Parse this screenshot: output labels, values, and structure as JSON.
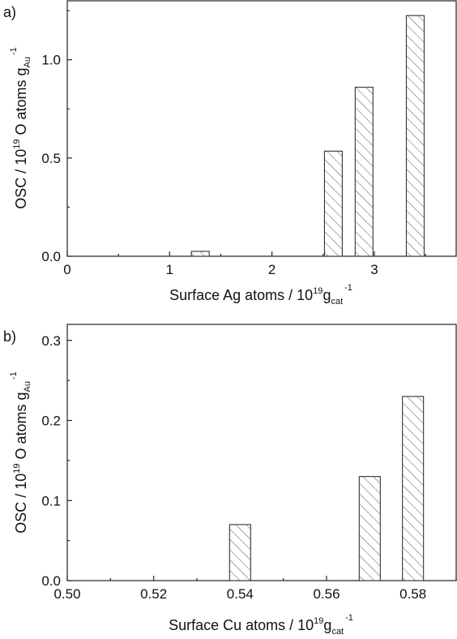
{
  "chart_data": [
    {
      "type": "bar",
      "panel_label": "a)",
      "bar_fill": "hatched",
      "x": [
        1.3,
        2.6,
        2.9,
        3.4
      ],
      "values": [
        0.025,
        0.535,
        0.86,
        1.225
      ],
      "xlim": [
        0,
        3.8
      ],
      "ylim": [
        0,
        1.3
      ],
      "xticks": [
        0,
        1,
        2,
        3
      ],
      "yticks": [
        0.0,
        0.5,
        1.0
      ],
      "xtick_labels": [
        "0",
        "1",
        "2",
        "3"
      ],
      "ytick_labels": [
        "0.0",
        "0.5",
        "1.0"
      ],
      "xlabel": {
        "text": "Surface Ag atoms / 10",
        "sup1": "19",
        "mid": "g",
        "sub": "cat",
        "sup2": "-1"
      },
      "ylabel": {
        "text": "OSC / 10",
        "sup1": "19",
        "mid": " O atoms g",
        "sub": "Au",
        "sup2": "-1"
      }
    },
    {
      "type": "bar",
      "panel_label": "b)",
      "bar_fill": "hatched",
      "x": [
        0.54,
        0.57,
        0.58
      ],
      "values": [
        0.07,
        0.13,
        0.23
      ],
      "xlim": [
        0.5,
        0.59
      ],
      "ylim": [
        0,
        0.32
      ],
      "xticks": [
        0.5,
        0.52,
        0.54,
        0.56,
        0.58
      ],
      "yticks": [
        0.0,
        0.1,
        0.2,
        0.3
      ],
      "xtick_labels": [
        "0.50",
        "0.52",
        "0.54",
        "0.56",
        "0.58"
      ],
      "ytick_labels": [
        "0.0",
        "0.1",
        "0.2",
        "0.3"
      ],
      "xlabel": {
        "text": "Surface Cu atoms / 10",
        "sup1": "19",
        "mid": "g",
        "sub": "cat",
        "sup2": "-1"
      },
      "ylabel": {
        "text": "OSC / 10",
        "sup1": "19",
        "mid": " O atoms g",
        "sub": "Au",
        "sup2": "-1"
      }
    }
  ]
}
